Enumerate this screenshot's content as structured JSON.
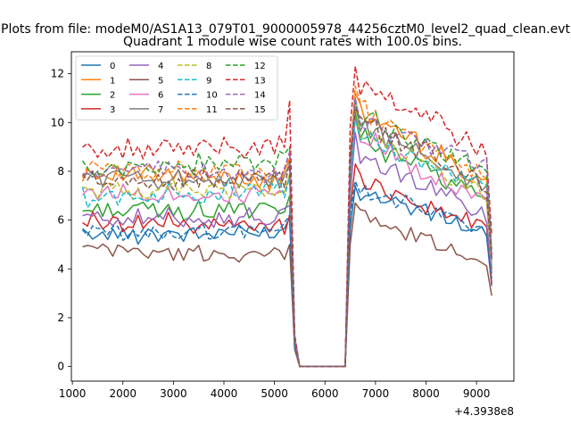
{
  "chart_data": {
    "type": "line",
    "suptitle": "Plots from file: modeM0/AS1A13_079T01_9000005978_44256cztM0_level2_quad_clean.evt",
    "title": "Quadrant 1 module wise count rates with 100.0s bins.",
    "xlabel": "",
    "ylabel": "",
    "x_offset_label": "+4.3938e8",
    "xlim": [
      980,
      9740
    ],
    "ylim": [
      -0.6,
      12.9
    ],
    "xticks": [
      1000,
      2000,
      3000,
      4000,
      5000,
      6000,
      7000,
      8000,
      9000
    ],
    "yticks": [
      0,
      2,
      4,
      6,
      8,
      10,
      12
    ],
    "legend_position": "upper-left",
    "legend_columns": 4,
    "x_knots": [
      1200,
      5200,
      5300,
      5400,
      5500,
      6400,
      6500,
      6600,
      6700,
      9200,
      9300
    ],
    "series": [
      {
        "name": "0",
        "color": "#1f77b4",
        "dash": "solid",
        "knots": [
          5.4,
          5.5,
          6.1,
          0.8,
          0.1,
          0.0,
          5.6,
          7.4,
          7.2,
          5.5,
          3.3
        ]
      },
      {
        "name": "1",
        "color": "#ff7f0e",
        "dash": "solid",
        "knots": [
          8.0,
          7.6,
          8.5,
          1.1,
          0.1,
          0.0,
          8.2,
          11.2,
          10.4,
          7.6,
          4.5
        ]
      },
      {
        "name": "2",
        "color": "#2ca02c",
        "dash": "solid",
        "knots": [
          6.4,
          6.4,
          7.0,
          0.9,
          0.1,
          0.0,
          7.4,
          10.4,
          9.4,
          6.8,
          4.0
        ]
      },
      {
        "name": "3",
        "color": "#d62728",
        "dash": "solid",
        "knots": [
          6.0,
          5.7,
          6.2,
          0.8,
          0.1,
          0.0,
          6.4,
          8.3,
          7.6,
          5.7,
          3.4
        ]
      },
      {
        "name": "4",
        "color": "#9467bd",
        "dash": "solid",
        "knots": [
          6.1,
          6.1,
          6.6,
          0.9,
          0.1,
          0.0,
          7.0,
          9.6,
          8.6,
          6.2,
          3.8
        ]
      },
      {
        "name": "5",
        "color": "#8c564b",
        "dash": "solid",
        "knots": [
          4.8,
          4.5,
          5.0,
          0.7,
          0.1,
          0.0,
          5.0,
          6.7,
          6.1,
          4.3,
          2.9
        ]
      },
      {
        "name": "6",
        "color": "#e377c2",
        "dash": "solid",
        "knots": [
          7.2,
          7.0,
          7.8,
          1.0,
          0.1,
          0.0,
          7.8,
          10.2,
          9.4,
          6.8,
          4.2
        ]
      },
      {
        "name": "7",
        "color": "#7f7f7f",
        "dash": "solid",
        "knots": [
          7.8,
          7.6,
          8.3,
          1.1,
          0.1,
          0.0,
          8.0,
          10.8,
          9.9,
          7.4,
          4.4
        ]
      },
      {
        "name": "8",
        "color": "#bcbd22",
        "dash": "dashed",
        "knots": [
          7.3,
          7.2,
          7.9,
          1.0,
          0.1,
          0.0,
          7.9,
          10.8,
          9.6,
          7.0,
          4.3
        ]
      },
      {
        "name": "9",
        "color": "#17becf",
        "dash": "dashed",
        "knots": [
          6.9,
          7.3,
          7.8,
          1.0,
          0.1,
          0.0,
          7.6,
          10.2,
          9.4,
          7.3,
          4.3
        ]
      },
      {
        "name": "10",
        "color": "#1f77b4",
        "dash": "dashed",
        "knots": [
          5.4,
          5.6,
          6.2,
          0.8,
          0.1,
          0.0,
          6.2,
          7.6,
          7.2,
          5.6,
          3.6
        ]
      },
      {
        "name": "11",
        "color": "#ff7f0e",
        "dash": "dashed",
        "knots": [
          8.1,
          7.9,
          8.6,
          1.1,
          0.1,
          0.0,
          8.6,
          11.5,
          10.5,
          7.8,
          4.6
        ]
      },
      {
        "name": "12",
        "color": "#2ca02c",
        "dash": "dashed",
        "knots": [
          8.1,
          8.4,
          9.0,
          1.2,
          0.1,
          0.0,
          8.5,
          11.0,
          10.2,
          8.0,
          4.8
        ]
      },
      {
        "name": "13",
        "color": "#d62728",
        "dash": "dashed",
        "knots": [
          8.8,
          9.1,
          10.9,
          1.3,
          0.1,
          0.0,
          9.8,
          12.3,
          11.4,
          8.9,
          5.4
        ]
      },
      {
        "name": "14",
        "color": "#9467bd",
        "dash": "dashed",
        "knots": [
          8.0,
          7.9,
          8.8,
          1.2,
          0.1,
          0.0,
          8.4,
          11.0,
          10.1,
          8.3,
          4.6
        ]
      },
      {
        "name": "15",
        "color": "#8c564b",
        "dash": "dashed",
        "knots": [
          7.6,
          7.7,
          8.4,
          1.1,
          0.1,
          0.0,
          8.3,
          10.6,
          9.9,
          7.6,
          4.4
        ]
      }
    ]
  }
}
